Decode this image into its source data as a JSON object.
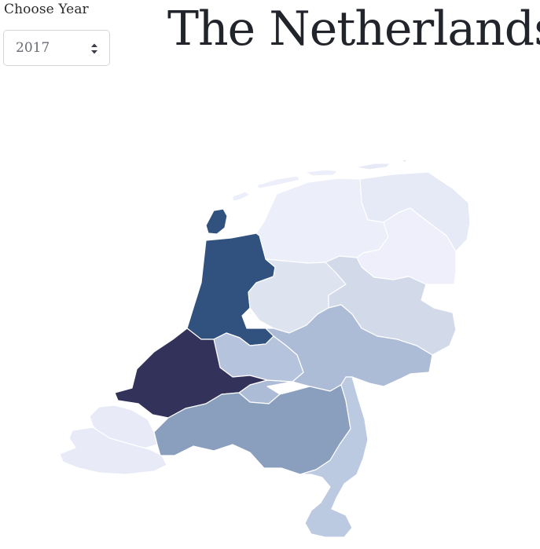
{
  "year_label": "Choose Year",
  "year_select": {
    "value": "2017",
    "icon": "updown-chevron-icon"
  },
  "title": "The Netherlands",
  "map": {
    "color_scale": [
      "#eef0fa",
      "#dee3f0",
      "#d0d7e8",
      "#bccaE1",
      "#adbcd6",
      "#8aa0bd",
      "#34548a",
      "#33335a"
    ],
    "regions": [
      {
        "name": "Groningen",
        "color": "#e6e9f6"
      },
      {
        "name": "Friesland",
        "color": "#eceef9"
      },
      {
        "name": "Drenthe",
        "color": "#eeeffb"
      },
      {
        "name": "Noord-Holland",
        "color": "#31527f"
      },
      {
        "name": "Flevoland",
        "color": "#dee3f0"
      },
      {
        "name": "Overijssel",
        "color": "#d2d9e9"
      },
      {
        "name": "Gelderland",
        "color": "#adbcd6"
      },
      {
        "name": "Utrecht",
        "color": "#b6c3dc"
      },
      {
        "name": "Zuid-Holland",
        "color": "#33325a"
      },
      {
        "name": "Zeeland",
        "color": "#e8ebf7"
      },
      {
        "name": "Noord-Brabant",
        "color": "#8a9fbd"
      },
      {
        "name": "Limburg",
        "color": "#bccae1"
      }
    ]
  }
}
